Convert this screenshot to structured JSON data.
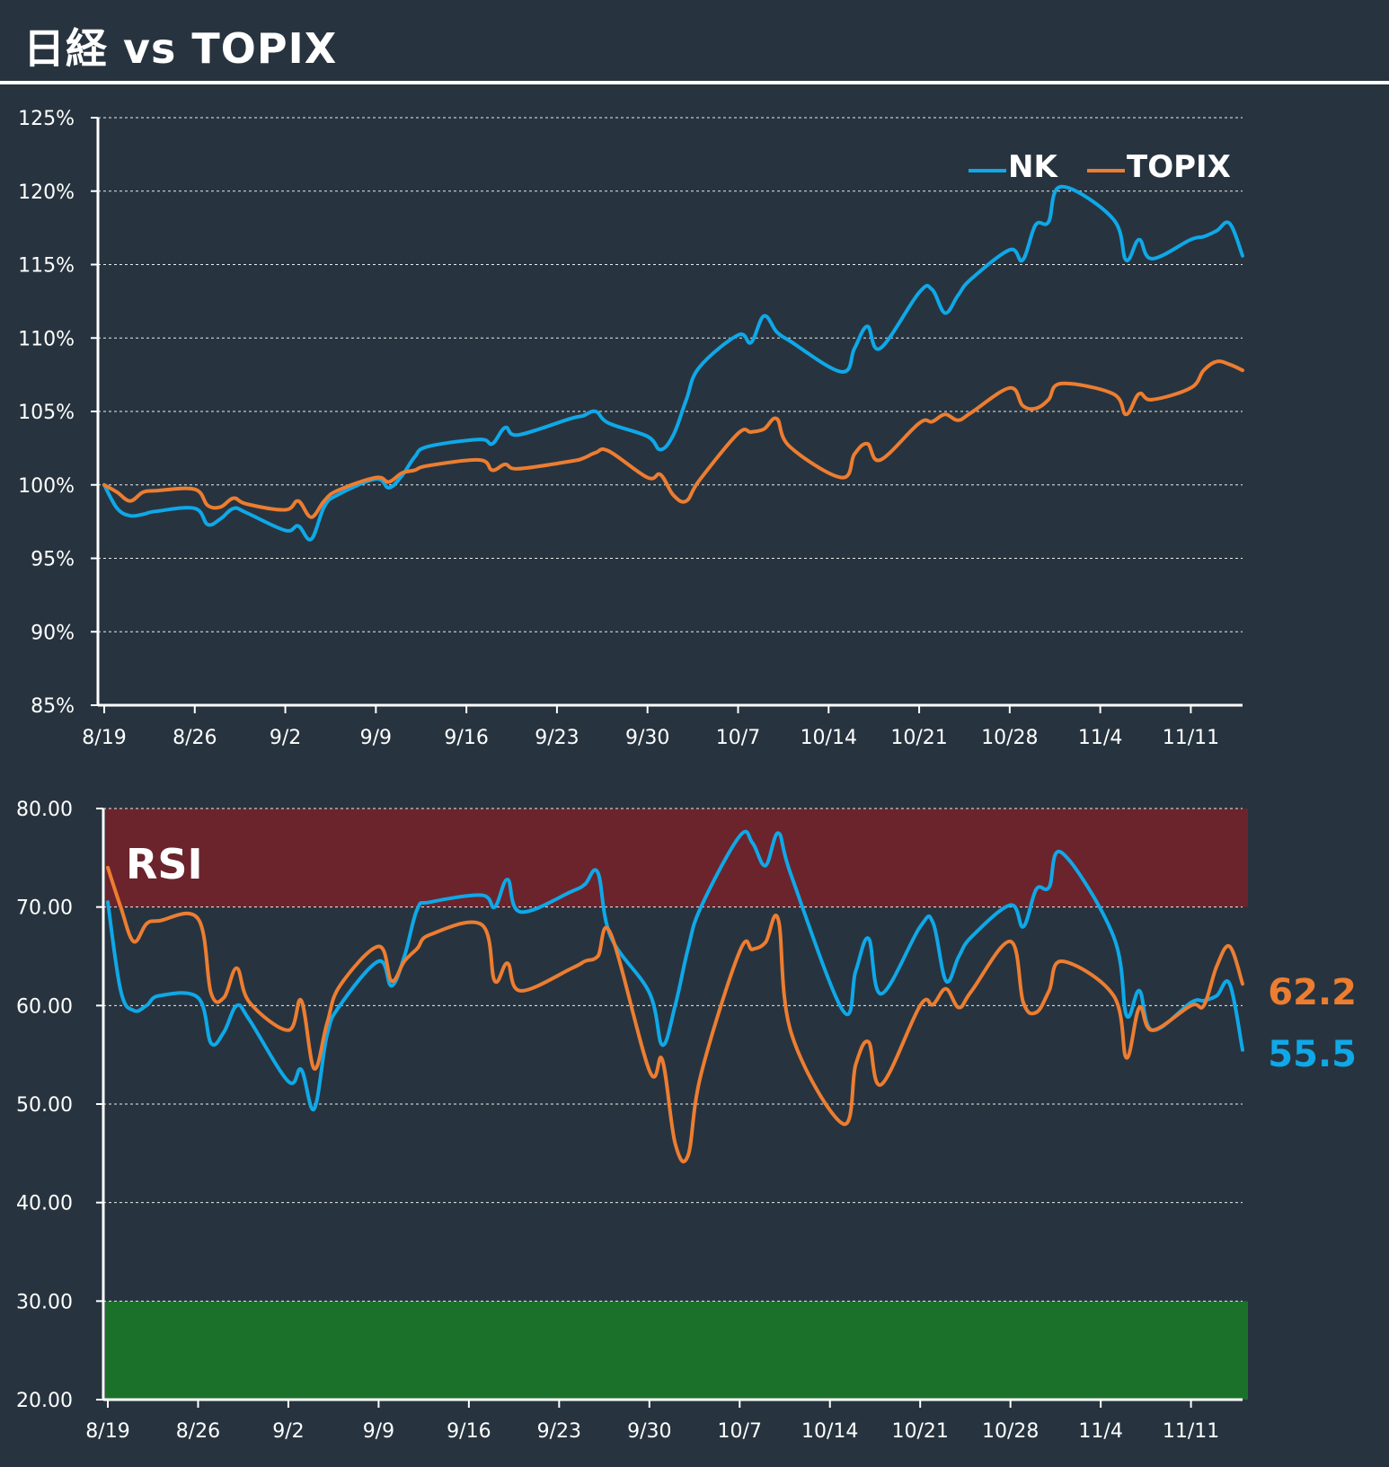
{
  "header": {
    "title": "日経 vs TOPIX"
  },
  "colors": {
    "nk": "#0fa8e8",
    "topix": "#ed7d31",
    "background": "#27343f",
    "overbought": "#6b242c",
    "oversold": "#1b7129",
    "grid": "#ffffff"
  },
  "chart_data": [
    {
      "type": "line",
      "title": "",
      "ylim": [
        85,
        125
      ],
      "y_ticks": [
        "125%",
        "120%",
        "115%",
        "110%",
        "105%",
        "100%",
        "95%",
        "90%",
        "85%"
      ],
      "y_tick_values": [
        125,
        120,
        115,
        110,
        105,
        100,
        95,
        90,
        85
      ],
      "x_range": [
        "2024-08-19",
        "2024-11-15"
      ],
      "x_ticks": [
        "8/19",
        "8/26",
        "9/2",
        "9/9",
        "9/16",
        "9/23",
        "9/30",
        "10/7",
        "10/14",
        "10/21",
        "10/28",
        "11/4",
        "11/11"
      ],
      "x_tick_dates": [
        "2024-08-19",
        "2024-08-26",
        "2024-09-02",
        "2024-09-09",
        "2024-09-16",
        "2024-09-23",
        "2024-09-30",
        "2024-10-07",
        "2024-10-14",
        "2024-10-21",
        "2024-10-28",
        "2024-11-04",
        "2024-11-11"
      ],
      "grid": true,
      "legend": "top-right",
      "series": [
        {
          "name": "NK",
          "color": "#0fa8e8",
          "x": [
            "2024-08-19",
            "2024-08-20",
            "2024-08-21",
            "2024-08-22",
            "2024-08-23",
            "2024-08-26",
            "2024-08-27",
            "2024-08-28",
            "2024-08-29",
            "2024-08-30",
            "2024-09-02",
            "2024-09-03",
            "2024-09-04",
            "2024-09-05",
            "2024-09-06",
            "2024-09-09",
            "2024-09-10",
            "2024-09-11",
            "2024-09-12",
            "2024-09-13",
            "2024-09-17",
            "2024-09-18",
            "2024-09-19",
            "2024-09-20",
            "2024-09-24",
            "2024-09-25",
            "2024-09-26",
            "2024-09-27",
            "2024-09-30",
            "2024-10-01",
            "2024-10-02",
            "2024-10-03",
            "2024-10-04",
            "2024-10-07",
            "2024-10-08",
            "2024-10-09",
            "2024-10-10",
            "2024-10-11",
            "2024-10-15",
            "2024-10-16",
            "2024-10-17",
            "2024-10-18",
            "2024-10-21",
            "2024-10-22",
            "2024-10-23",
            "2024-10-24",
            "2024-10-25",
            "2024-10-28",
            "2024-10-29",
            "2024-10-30",
            "2024-10-31",
            "2024-11-01",
            "2024-11-05",
            "2024-11-06",
            "2024-11-07",
            "2024-11-08",
            "2024-11-11",
            "2024-11-12",
            "2024-11-13",
            "2024-11-14",
            "2024-11-15"
          ],
          "values": [
            100.0,
            98.4,
            97.9,
            98.0,
            98.2,
            98.4,
            97.3,
            97.7,
            98.4,
            98.1,
            96.9,
            97.2,
            96.3,
            98.5,
            99.3,
            100.4,
            99.8,
            100.6,
            101.9,
            102.6,
            103.1,
            102.8,
            103.9,
            103.4,
            104.5,
            104.7,
            105.0,
            104.2,
            103.3,
            102.4,
            103.4,
            105.8,
            108.0,
            110.2,
            109.7,
            111.5,
            110.4,
            109.8,
            107.7,
            109.3,
            110.8,
            109.3,
            113.1,
            113.3,
            111.7,
            112.9,
            114.0,
            116.0,
            115.3,
            117.7,
            117.9,
            120.3,
            118.1,
            115.3,
            116.7,
            115.4,
            116.7,
            116.9,
            117.3,
            117.8,
            115.6
          ]
        },
        {
          "name": "TOPIX",
          "color": "#ed7d31",
          "x": [
            "2024-08-19",
            "2024-08-20",
            "2024-08-21",
            "2024-08-22",
            "2024-08-23",
            "2024-08-26",
            "2024-08-27",
            "2024-08-28",
            "2024-08-29",
            "2024-08-30",
            "2024-09-02",
            "2024-09-03",
            "2024-09-04",
            "2024-09-05",
            "2024-09-06",
            "2024-09-09",
            "2024-09-10",
            "2024-09-11",
            "2024-09-12",
            "2024-09-13",
            "2024-09-17",
            "2024-09-18",
            "2024-09-19",
            "2024-09-20",
            "2024-09-24",
            "2024-09-25",
            "2024-09-26",
            "2024-09-27",
            "2024-09-30",
            "2024-10-01",
            "2024-10-02",
            "2024-10-03",
            "2024-10-04",
            "2024-10-07",
            "2024-10-08",
            "2024-10-09",
            "2024-10-10",
            "2024-10-11",
            "2024-10-15",
            "2024-10-16",
            "2024-10-17",
            "2024-10-18",
            "2024-10-21",
            "2024-10-22",
            "2024-10-23",
            "2024-10-24",
            "2024-10-25",
            "2024-10-28",
            "2024-10-29",
            "2024-10-30",
            "2024-10-31",
            "2024-11-01",
            "2024-11-05",
            "2024-11-06",
            "2024-11-07",
            "2024-11-08",
            "2024-11-11",
            "2024-11-12",
            "2024-11-13",
            "2024-11-14",
            "2024-11-15"
          ],
          "values": [
            100.0,
            99.5,
            98.9,
            99.5,
            99.6,
            99.7,
            98.6,
            98.5,
            99.1,
            98.7,
            98.3,
            98.9,
            97.8,
            98.9,
            99.6,
            100.5,
            100.2,
            100.8,
            101.0,
            101.3,
            101.7,
            101.0,
            101.4,
            101.1,
            101.6,
            101.8,
            102.2,
            102.3,
            100.5,
            100.7,
            99.3,
            98.9,
            100.3,
            103.5,
            103.6,
            103.8,
            104.5,
            102.6,
            100.5,
            102.1,
            102.8,
            101.7,
            104.2,
            104.3,
            104.8,
            104.4,
            104.9,
            106.6,
            105.4,
            105.2,
            105.8,
            106.9,
            106.2,
            104.8,
            106.2,
            105.8,
            106.6,
            107.8,
            108.4,
            108.2,
            107.8
          ]
        }
      ]
    },
    {
      "type": "line",
      "title": "",
      "annotation": "RSI",
      "ylim": [
        20,
        80
      ],
      "y_ticks": [
        "80.00",
        "70.00",
        "60.00",
        "50.00",
        "40.00",
        "30.00",
        "20.00"
      ],
      "y_tick_values": [
        80,
        70,
        60,
        50,
        40,
        30,
        20
      ],
      "x_range": [
        "2024-08-19",
        "2024-11-15"
      ],
      "x_ticks": [
        "8/19",
        "8/26",
        "9/2",
        "9/9",
        "9/16",
        "9/23",
        "9/30",
        "10/7",
        "10/14",
        "10/21",
        "10/28",
        "11/4",
        "11/11"
      ],
      "x_tick_dates": [
        "2024-08-19",
        "2024-08-26",
        "2024-09-02",
        "2024-09-09",
        "2024-09-16",
        "2024-09-23",
        "2024-09-30",
        "2024-10-07",
        "2024-10-14",
        "2024-10-21",
        "2024-10-28",
        "2024-11-04",
        "2024-11-11"
      ],
      "grid": true,
      "bands": [
        {
          "from": 70,
          "to": 80,
          "color": "#6b242c"
        },
        {
          "from": 20,
          "to": 30,
          "color": "#1b7129"
        }
      ],
      "last_values": [
        {
          "series": "TOPIX",
          "label": "62.2",
          "color": "#ed7d31"
        },
        {
          "series": "NK",
          "label": "55.5",
          "color": "#0fa8e8"
        }
      ],
      "series": [
        {
          "name": "NK",
          "color": "#0fa8e8",
          "x": [
            "2024-08-19",
            "2024-08-20",
            "2024-08-21",
            "2024-08-22",
            "2024-08-23",
            "2024-08-26",
            "2024-08-27",
            "2024-08-28",
            "2024-08-29",
            "2024-08-30",
            "2024-09-02",
            "2024-09-03",
            "2024-09-04",
            "2024-09-05",
            "2024-09-06",
            "2024-09-09",
            "2024-09-10",
            "2024-09-11",
            "2024-09-12",
            "2024-09-13",
            "2024-09-17",
            "2024-09-18",
            "2024-09-19",
            "2024-09-20",
            "2024-09-24",
            "2024-09-25",
            "2024-09-26",
            "2024-09-27",
            "2024-09-30",
            "2024-10-01",
            "2024-10-02",
            "2024-10-03",
            "2024-10-04",
            "2024-10-07",
            "2024-10-08",
            "2024-10-09",
            "2024-10-10",
            "2024-10-11",
            "2024-10-15",
            "2024-10-16",
            "2024-10-17",
            "2024-10-18",
            "2024-10-21",
            "2024-10-22",
            "2024-10-23",
            "2024-10-24",
            "2024-10-25",
            "2024-10-28",
            "2024-10-29",
            "2024-10-30",
            "2024-10-31",
            "2024-11-01",
            "2024-11-05",
            "2024-11-06",
            "2024-11-07",
            "2024-11-08",
            "2024-11-11",
            "2024-11-12",
            "2024-11-13",
            "2024-11-14",
            "2024-11-15"
          ],
          "values": [
            70.5,
            61.5,
            59.5,
            60.0,
            61.0,
            60.8,
            56.2,
            57.3,
            60.0,
            58.5,
            52.3,
            53.5,
            49.5,
            57.0,
            60.0,
            64.5,
            62.0,
            65.0,
            69.8,
            70.5,
            71.2,
            70.0,
            72.8,
            69.5,
            71.6,
            72.3,
            73.5,
            67.0,
            61.3,
            56.0,
            60.0,
            65.8,
            70.0,
            77.2,
            76.5,
            74.2,
            77.5,
            73.2,
            59.5,
            63.5,
            66.8,
            61.2,
            68.0,
            68.4,
            62.5,
            65.0,
            67.0,
            70.2,
            68.0,
            71.8,
            72.0,
            75.5,
            67.0,
            59.0,
            61.5,
            57.5,
            60.3,
            60.5,
            61.0,
            62.2,
            55.5
          ]
        },
        {
          "name": "TOPIX",
          "color": "#ed7d31",
          "x": [
            "2024-08-19",
            "2024-08-20",
            "2024-08-21",
            "2024-08-22",
            "2024-08-23",
            "2024-08-26",
            "2024-08-27",
            "2024-08-28",
            "2024-08-29",
            "2024-08-30",
            "2024-09-02",
            "2024-09-03",
            "2024-09-04",
            "2024-09-05",
            "2024-09-06",
            "2024-09-09",
            "2024-09-10",
            "2024-09-11",
            "2024-09-12",
            "2024-09-13",
            "2024-09-17",
            "2024-09-18",
            "2024-09-19",
            "2024-09-20",
            "2024-09-24",
            "2024-09-25",
            "2024-09-26",
            "2024-09-27",
            "2024-09-30",
            "2024-10-01",
            "2024-10-02",
            "2024-10-03",
            "2024-10-04",
            "2024-10-07",
            "2024-10-08",
            "2024-10-09",
            "2024-10-10",
            "2024-10-11",
            "2024-10-15",
            "2024-10-16",
            "2024-10-17",
            "2024-10-18",
            "2024-10-21",
            "2024-10-22",
            "2024-10-23",
            "2024-10-24",
            "2024-10-25",
            "2024-10-28",
            "2024-10-29",
            "2024-10-30",
            "2024-10-31",
            "2024-11-01",
            "2024-11-05",
            "2024-11-06",
            "2024-11-07",
            "2024-11-08",
            "2024-11-11",
            "2024-11-12",
            "2024-11-13",
            "2024-11-14",
            "2024-11-15"
          ],
          "values": [
            74.0,
            70.0,
            66.5,
            68.3,
            68.6,
            68.8,
            61.3,
            60.8,
            63.8,
            60.3,
            57.5,
            60.5,
            53.6,
            58.2,
            62.0,
            66.0,
            62.5,
            64.5,
            65.8,
            67.2,
            68.2,
            62.5,
            64.3,
            61.5,
            63.8,
            64.5,
            65.0,
            67.3,
            53.4,
            54.5,
            46.0,
            44.8,
            53.0,
            65.5,
            65.7,
            66.4,
            68.7,
            57.2,
            48.0,
            54.0,
            56.3,
            52.0,
            60.0,
            60.1,
            61.7,
            59.8,
            61.5,
            66.5,
            60.3,
            59.3,
            61.5,
            64.5,
            61.0,
            54.7,
            59.8,
            57.5,
            60.0,
            60.0,
            64.0,
            66.0,
            62.2
          ]
        }
      ]
    }
  ]
}
